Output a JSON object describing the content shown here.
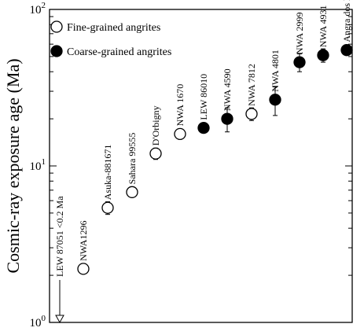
{
  "chart_data": {
    "type": "scatter",
    "title": "",
    "xlabel": "",
    "ylabel": "Cosmic-ray exposure age (Ma)",
    "yscale": "log",
    "ylim": [
      1,
      100
    ],
    "y_ticks": [
      {
        "value": 1,
        "base": "10",
        "exp": "0"
      },
      {
        "value": 10,
        "base": "10",
        "exp": "1"
      },
      {
        "value": 100,
        "base": "10",
        "exp": "2"
      }
    ],
    "grid": false,
    "legend_position": "top-left",
    "legend": [
      {
        "label": "Fine-grained angrites",
        "marker": "open-circle"
      },
      {
        "label": "Coarse-grained angrites",
        "marker": "filled-circle"
      }
    ],
    "upper_limit": {
      "name": "LEW 87051",
      "label": "LEW 87051 <0.2 Ma",
      "value": 0.2
    },
    "points": [
      {
        "name": "NWA1296",
        "y": 2.2,
        "err": 0.15,
        "type": "fine"
      },
      {
        "name": "Asuka-881671",
        "y": 5.4,
        "err": 0.5,
        "type": "fine"
      },
      {
        "name": "Sahara 99555",
        "y": 6.8,
        "err": 0.3,
        "type": "fine"
      },
      {
        "name": "D'Orbigny",
        "y": 12.0,
        "err": 1.0,
        "type": "fine"
      },
      {
        "name": "NWA 1670",
        "y": 16.0,
        "err": 1.2,
        "type": "fine"
      },
      {
        "name": "LEW 86010",
        "y": 17.5,
        "err": 1.0,
        "type": "coarse"
      },
      {
        "name": "NWA 4590",
        "y": 20.0,
        "err": 3.5,
        "type": "coarse"
      },
      {
        "name": "NWA 7812",
        "y": 21.5,
        "err": 2.0,
        "type": "fine"
      },
      {
        "name": "NWA 4801",
        "y": 26.5,
        "err": 5.5,
        "type": "coarse"
      },
      {
        "name": "NWA 2999",
        "y": 46.0,
        "err": 6.0,
        "type": "coarse"
      },
      {
        "name": "NWA 4931",
        "y": 51.0,
        "err": 5.0,
        "type": "coarse"
      },
      {
        "name": "Angra dos Reis",
        "y": 55.0,
        "err": 3.0,
        "type": "coarse"
      }
    ]
  }
}
